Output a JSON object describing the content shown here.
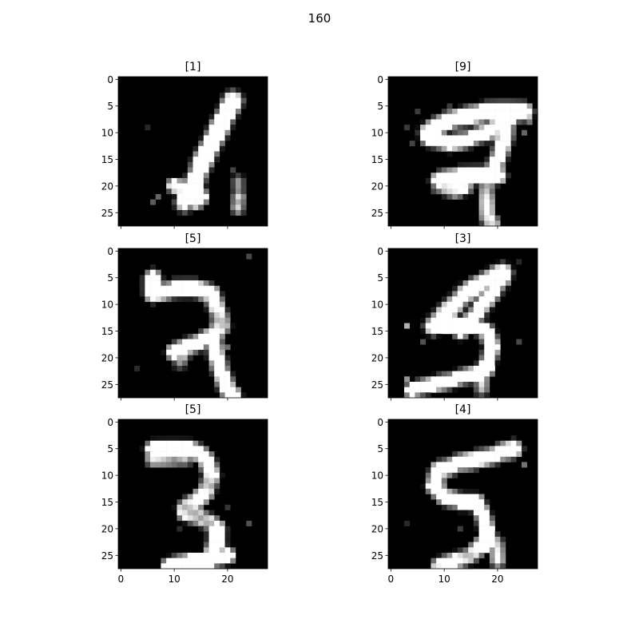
{
  "figure": {
    "suptitle": "160"
  },
  "chart_data": [
    {
      "type": "heatmap",
      "title": "[1]",
      "colormap": "gray",
      "rows": 28,
      "cols": 28,
      "xlim": [
        -0.5,
        27.5
      ],
      "ylim": [
        27.5,
        -0.5
      ],
      "yticks": [
        0,
        5,
        10,
        15,
        20,
        25
      ],
      "xticks": [
        0,
        10,
        20
      ],
      "show_xtick_labels": false,
      "strokes": [
        {
          "points": [
            [
              21,
              4
            ],
            [
              19,
              8
            ],
            [
              17,
              12
            ],
            [
              15,
              16
            ],
            [
              14,
              19
            ],
            [
              13,
              21
            ],
            [
              12,
              23
            ]
          ],
          "width": 1.4,
          "intensity": 1.0
        },
        {
          "points": [
            [
              10,
              20
            ],
            [
              13,
              21
            ],
            [
              15,
              22
            ],
            [
              14,
              23
            ]
          ],
          "width": 1.0,
          "intensity": 0.95
        },
        {
          "points": [
            [
              22,
              19
            ],
            [
              22,
              21
            ]
          ],
          "width": 0.6,
          "intensity": 0.5
        },
        {
          "points": [
            [
              22,
              22
            ],
            [
              22,
              24
            ]
          ],
          "width": 0.7,
          "intensity": 0.95
        }
      ],
      "specks": [
        [
          7,
          22,
          0.35
        ],
        [
          6,
          23,
          0.3
        ],
        [
          21,
          17,
          0.25
        ],
        [
          5,
          9,
          0.15
        ]
      ]
    },
    {
      "type": "heatmap",
      "title": "[9]",
      "colormap": "gray",
      "rows": 28,
      "cols": 28,
      "xlim": [
        -0.5,
        27.5
      ],
      "ylim": [
        27.5,
        -0.5
      ],
      "yticks": [
        0,
        5,
        10,
        15,
        20,
        25
      ],
      "xticks": [
        0,
        10,
        20
      ],
      "show_xtick_labels": false,
      "strokes": [
        {
          "points": [
            [
              7,
              10
            ],
            [
              10,
              8
            ],
            [
              14,
              7
            ],
            [
              18,
              6
            ],
            [
              22,
              6
            ],
            [
              25,
              6
            ]
          ],
          "width": 1.3,
          "intensity": 1.0
        },
        {
          "points": [
            [
              7,
              11
            ],
            [
              11,
              12
            ],
            [
              15,
              11
            ],
            [
              18,
              10
            ],
            [
              21,
              8
            ],
            [
              24,
              6
            ]
          ],
          "width": 1.1,
          "intensity": 1.0
        },
        {
          "points": [
            [
              22,
              8
            ],
            [
              21,
              12
            ],
            [
              20,
              15
            ],
            [
              19,
              18
            ]
          ],
          "width": 1.1,
          "intensity": 1.0
        },
        {
          "points": [
            [
              9,
              19
            ],
            [
              13,
              18
            ],
            [
              17,
              18
            ],
            [
              20,
              18
            ]
          ],
          "width": 1.2,
          "intensity": 1.0
        },
        {
          "points": [
            [
              9,
              20
            ],
            [
              12,
              21
            ],
            [
              14,
              20
            ]
          ],
          "width": 0.9,
          "intensity": 0.85
        },
        {
          "points": [
            [
              18,
              19
            ],
            [
              18,
              23
            ],
            [
              18,
              26
            ],
            [
              19,
              27
            ]
          ],
          "width": 0.9,
          "intensity": 0.9
        }
      ],
      "specks": [
        [
          3,
          9,
          0.3
        ],
        [
          4,
          12,
          0.25
        ],
        [
          25,
          10,
          0.5
        ],
        [
          26,
          8,
          0.4
        ],
        [
          5,
          6,
          0.2
        ],
        [
          11,
          5,
          0.2
        ]
      ]
    },
    {
      "type": "heatmap",
      "title": "[5]",
      "colormap": "gray",
      "rows": 28,
      "cols": 28,
      "xlim": [
        -0.5,
        27.5
      ],
      "ylim": [
        27.5,
        -0.5
      ],
      "yticks": [
        0,
        5,
        10,
        15,
        20,
        25
      ],
      "xticks": [
        0,
        10,
        20
      ],
      "show_xtick_labels": false,
      "strokes": [
        {
          "points": [
            [
              6,
              5
            ],
            [
              6,
              8
            ],
            [
              10,
              7
            ],
            [
              14,
              7
            ],
            [
              17,
              8
            ]
          ],
          "width": 1.2,
          "intensity": 1.0
        },
        {
          "points": [
            [
              17,
              8
            ],
            [
              18,
              11
            ],
            [
              19,
              14
            ],
            [
              17,
              16
            ]
          ],
          "width": 1.1,
          "intensity": 0.95
        },
        {
          "points": [
            [
              10,
              19
            ],
            [
              12,
              18
            ],
            [
              15,
              17
            ],
            [
              17,
              16
            ]
          ],
          "width": 1.1,
          "intensity": 1.0
        },
        {
          "points": [
            [
              17,
              16
            ],
            [
              18,
              20
            ],
            [
              19,
              23
            ],
            [
              20,
              26
            ],
            [
              21,
              27
            ]
          ],
          "width": 1.1,
          "intensity": 1.0
        },
        {
          "points": [
            [
              12,
              19
            ],
            [
              11,
              21
            ]
          ],
          "width": 0.7,
          "intensity": 0.6
        }
      ],
      "specks": [
        [
          24,
          1,
          0.3
        ],
        [
          3,
          22,
          0.15
        ],
        [
          20,
          18,
          0.35
        ]
      ]
    },
    {
      "type": "heatmap",
      "title": "[3]",
      "colormap": "gray",
      "rows": 28,
      "cols": 28,
      "xlim": [
        -0.5,
        27.5
      ],
      "ylim": [
        27.5,
        -0.5
      ],
      "yticks": [
        0,
        5,
        10,
        15,
        20,
        25
      ],
      "xticks": [
        0,
        10,
        20
      ],
      "show_xtick_labels": false,
      "strokes": [
        {
          "points": [
            [
              21,
              4
            ],
            [
              17,
              6
            ],
            [
              14,
              8
            ],
            [
              11,
              11
            ],
            [
              8,
              14
            ]
          ],
          "width": 1.3,
          "intensity": 1.0
        },
        {
          "points": [
            [
              21,
              5
            ],
            [
              18,
              9
            ],
            [
              15,
              13
            ],
            [
              13,
              15
            ]
          ],
          "width": 1.1,
          "intensity": 1.0
        },
        {
          "points": [
            [
              8,
              14
            ],
            [
              12,
              14
            ],
            [
              16,
              14
            ],
            [
              18,
              15
            ]
          ],
          "width": 1.0,
          "intensity": 1.0
        },
        {
          "points": [
            [
              18,
              15
            ],
            [
              19,
              18
            ],
            [
              18,
              21
            ],
            [
              17,
              23
            ]
          ],
          "width": 1.0,
          "intensity": 1.0
        },
        {
          "points": [
            [
              4,
              26
            ],
            [
              8,
              25
            ],
            [
              12,
              24
            ],
            [
              16,
              23
            ],
            [
              18,
              22
            ]
          ],
          "width": 1.0,
          "intensity": 1.0
        },
        {
          "points": [
            [
              17,
              23
            ],
            [
              17,
              26
            ]
          ],
          "width": 0.7,
          "intensity": 0.85
        }
      ],
      "specks": [
        [
          3,
          14,
          0.6
        ],
        [
          3,
          24,
          0.8
        ],
        [
          3,
          26,
          0.7
        ],
        [
          24,
          17,
          0.4
        ],
        [
          24,
          2,
          0.2
        ],
        [
          6,
          17,
          0.3
        ]
      ]
    },
    {
      "type": "heatmap",
      "title": "[5]",
      "colormap": "gray",
      "rows": 28,
      "cols": 28,
      "xlim": [
        -0.5,
        27.5
      ],
      "ylim": [
        27.5,
        -0.5
      ],
      "yticks": [
        0,
        5,
        10,
        15,
        20,
        25
      ],
      "xticks": [
        0,
        10,
        20
      ],
      "show_xtick_labels": false,
      "strokes": [
        {
          "points": [
            [
              6,
              5
            ],
            [
              9,
              5
            ],
            [
              13,
              5
            ],
            [
              15,
              6
            ]
          ],
          "width": 1.1,
          "intensity": 1.0
        },
        {
          "points": [
            [
              6,
              7
            ],
            [
              9,
              7
            ],
            [
              12,
              7
            ]
          ],
          "width": 0.8,
          "intensity": 0.8
        },
        {
          "points": [
            [
              16,
              7
            ],
            [
              17,
              10
            ],
            [
              16,
              13
            ],
            [
              14,
              15
            ],
            [
              12,
              16
            ]
          ],
          "width": 1.1,
          "intensity": 0.95
        },
        {
          "points": [
            [
              12,
              17
            ],
            [
              15,
              18
            ],
            [
              17,
              19
            ],
            [
              18,
              20
            ]
          ],
          "width": 1.0,
          "intensity": 0.9
        },
        {
          "points": [
            [
              18,
              20
            ],
            [
              18,
              23
            ],
            [
              17,
              25
            ]
          ],
          "width": 1.2,
          "intensity": 1.0
        },
        {
          "points": [
            [
              9,
              27
            ],
            [
              13,
              26
            ],
            [
              17,
              26
            ],
            [
              20,
              25
            ]
          ],
          "width": 1.0,
          "intensity": 1.0
        }
      ],
      "specks": [
        [
          24,
          19,
          0.3
        ],
        [
          20,
          16,
          0.2
        ],
        [
          11,
          20,
          0.15
        ]
      ]
    },
    {
      "type": "heatmap",
      "title": "[4]",
      "colormap": "gray",
      "rows": 28,
      "cols": 28,
      "xlim": [
        -0.5,
        27.5
      ],
      "ylim": [
        27.5,
        -0.5
      ],
      "yticks": [
        0,
        5,
        10,
        15,
        20,
        25
      ],
      "xticks": [
        0,
        10,
        20
      ],
      "show_xtick_labels": true,
      "strokes": [
        {
          "points": [
            [
              23,
              5
            ],
            [
              20,
              6
            ],
            [
              16,
              7
            ],
            [
              12,
              8
            ],
            [
              9,
              9
            ]
          ],
          "width": 1.2,
          "intensity": 1.0
        },
        {
          "points": [
            [
              9,
              9
            ],
            [
              8,
              12
            ],
            [
              10,
              14
            ],
            [
              13,
              15
            ],
            [
              16,
              15
            ]
          ],
          "width": 1.1,
          "intensity": 1.0
        },
        {
          "points": [
            [
              16,
              15
            ],
            [
              17,
              17
            ],
            [
              18,
              20
            ],
            [
              18,
              23
            ]
          ],
          "width": 1.0,
          "intensity": 1.0
        },
        {
          "points": [
            [
              17,
              23
            ],
            [
              15,
              25
            ],
            [
              12,
              26
            ],
            [
              9,
              27
            ]
          ],
          "width": 1.0,
          "intensity": 0.95
        },
        {
          "points": [
            [
              18,
              21
            ],
            [
              20,
              23
            ],
            [
              20,
              26
            ]
          ],
          "width": 0.8,
          "intensity": 0.85
        }
      ],
      "specks": [
        [
          25,
          8,
          0.4
        ],
        [
          24,
          6,
          0.35
        ],
        [
          3,
          19,
          0.15
        ],
        [
          13,
          20,
          0.2
        ]
      ]
    }
  ],
  "colors": {
    "background": "#ffffff",
    "axis_background": "#000000",
    "text": "#000000"
  }
}
